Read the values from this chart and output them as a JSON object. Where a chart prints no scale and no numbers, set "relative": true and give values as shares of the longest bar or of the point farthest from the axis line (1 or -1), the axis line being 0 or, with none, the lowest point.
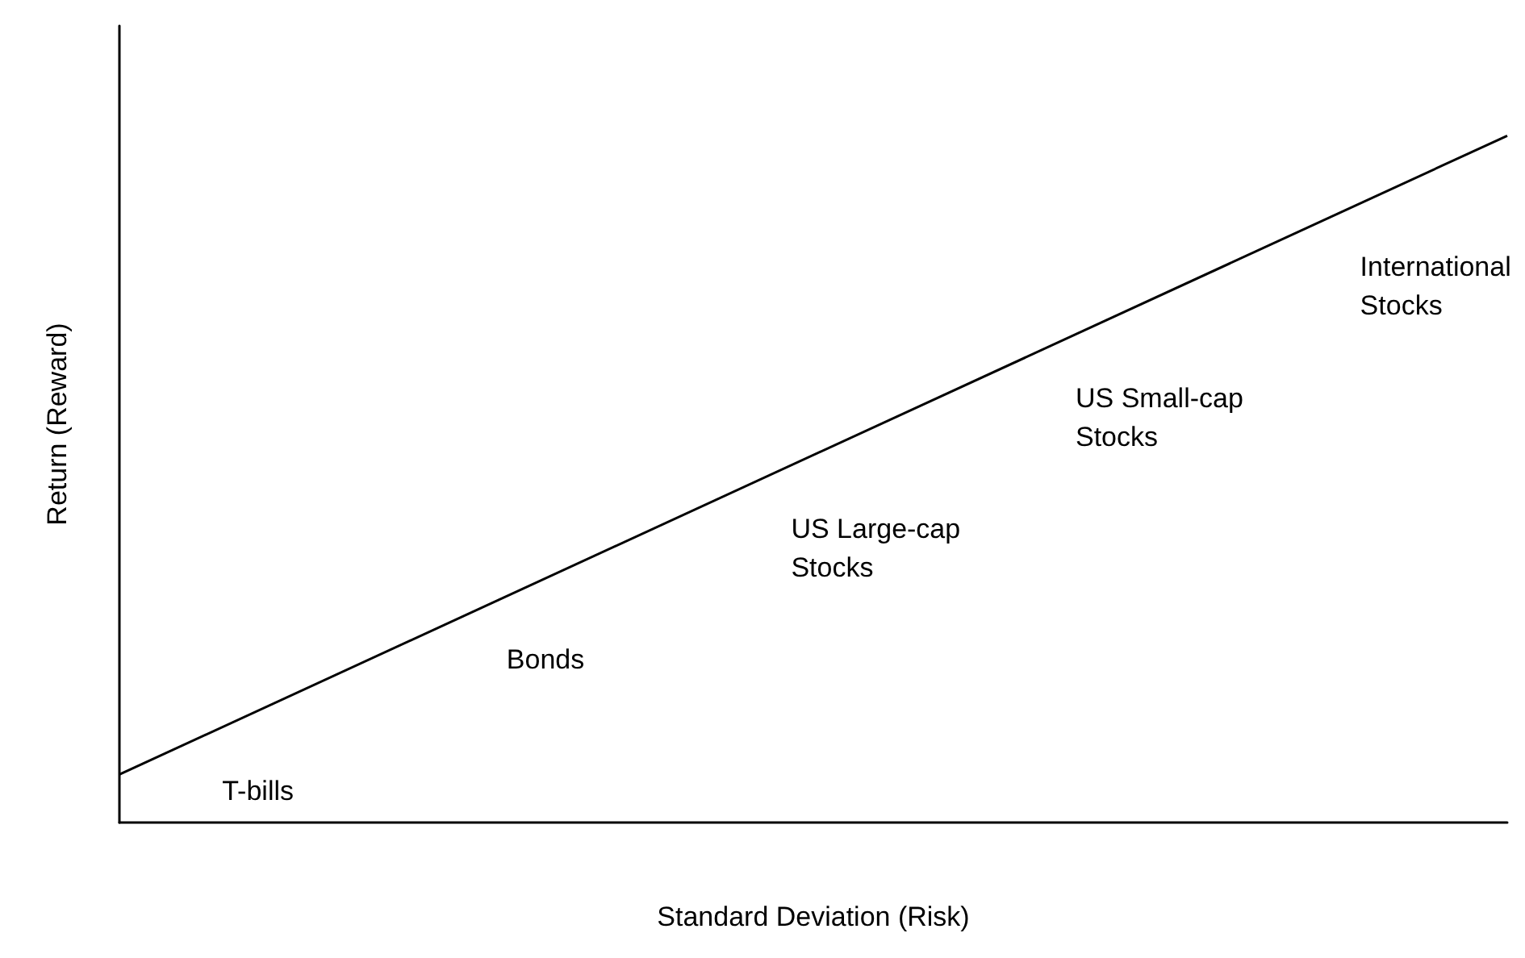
{
  "chart_data": {
    "type": "line",
    "relative": true,
    "xlabel": "Standard Deviation (Risk)",
    "ylabel": "Return (Reward)",
    "categories": [
      null,
      null
    ],
    "series": [
      {
        "color": "#000000",
        "values": [
          0.07,
          1
        ]
      }
    ],
    "marker": "none",
    "grid": false,
    "annotations": [
      "T-bills",
      "Bonds",
      "US Large-cap\nStocks",
      "US Small-cap\nStocks",
      "International\nStocks"
    ]
  }
}
